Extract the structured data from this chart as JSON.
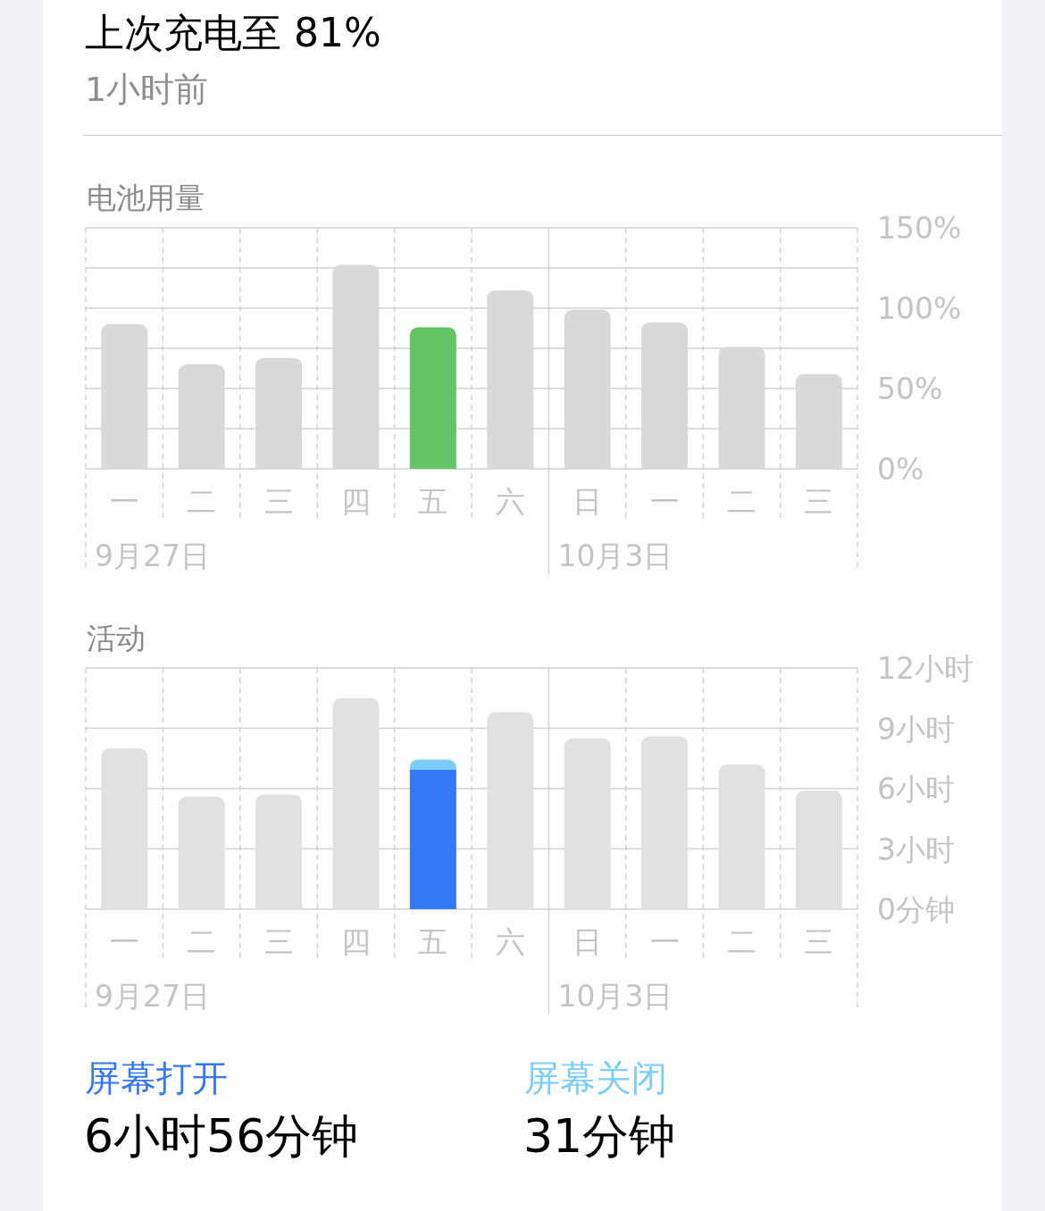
{
  "chart_data": [
    {
      "type": "other",
      "title": "上次充电至 81%",
      "subtitle": "1小时前"
    },
    {
      "type": "bar",
      "title": "电池用量",
      "categories": [
        "一",
        "二",
        "三",
        "四",
        "五",
        "六",
        "日",
        "一",
        "二",
        "三"
      ],
      "values": [
        90,
        65,
        69,
        127,
        88,
        111,
        99,
        91,
        76,
        59
      ],
      "colors": [
        "#d9d9d9",
        "#d9d9d9",
        "#d9d9d9",
        "#d9d9d9",
        "#65c466",
        "#d9d9d9",
        "#d9d9d9",
        "#d9d9d9",
        "#d9d9d9",
        "#d9d9d9"
      ],
      "ylim": [
        0,
        150
      ],
      "yticks": [
        {
          "value": 0,
          "label": "0%"
        },
        {
          "value": 25,
          "label": null
        },
        {
          "value": 50,
          "label": "50%"
        },
        {
          "value": 75,
          "label": null
        },
        {
          "value": 100,
          "label": "100%"
        },
        {
          "value": 125,
          "label": null
        },
        {
          "value": 150,
          "label": "150%"
        }
      ],
      "grid": true,
      "annotations": [
        "9月27日",
        "10月3日"
      ]
    },
    {
      "type": "bar",
      "title": "活动",
      "stacked": true,
      "categories": [
        "一",
        "二",
        "三",
        "四",
        "五",
        "六",
        "日",
        "一",
        "二",
        "三"
      ],
      "series": [
        {
          "color": "#e1e1e1",
          "values": [
            8.0,
            5.6,
            5.7,
            10.5,
            null,
            9.8,
            8.5,
            8.6,
            7.2,
            5.9
          ]
        },
        {
          "name": "屏幕打开",
          "color": "#3478f6",
          "values": [
            null,
            null,
            null,
            null,
            6.93,
            null,
            null,
            null,
            null,
            null
          ]
        },
        {
          "name": "屏幕关闭",
          "color": "#7dcdfa",
          "values": [
            null,
            null,
            null,
            null,
            0.52,
            null,
            null,
            null,
            null,
            null
          ]
        }
      ],
      "ylim": [
        0,
        12
      ],
      "yticks": [
        {
          "value": 0,
          "label": "0分钟"
        },
        {
          "value": 3,
          "label": "3小时"
        },
        {
          "value": 6,
          "label": "6小时"
        },
        {
          "value": 9,
          "label": "9小时"
        },
        {
          "value": 12,
          "label": "12小时"
        }
      ],
      "grid": true,
      "legend": "bottom",
      "annotations": [
        "9月27日",
        "10月3日",
        "6小时56分钟",
        "31分钟"
      ]
    }
  ]
}
